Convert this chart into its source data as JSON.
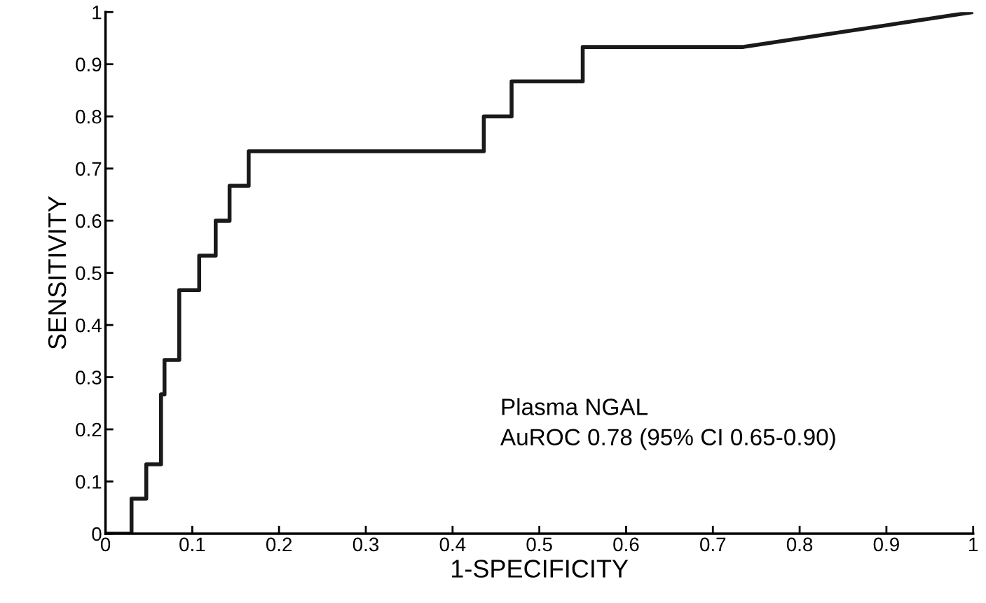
{
  "chart_data": {
    "type": "line",
    "xlabel": "1-SPECIFICITY",
    "ylabel": "SENSITIVITY",
    "series": [
      {
        "color": "#1a1a1a",
        "x": [
          0,
          0.03,
          0.03,
          0.047,
          0.047,
          0.064,
          0.064,
          0.068,
          0.068,
          0.085,
          0.085,
          0.108,
          0.108,
          0.127,
          0.127,
          0.143,
          0.143,
          0.165,
          0.165,
          0.436,
          0.436,
          0.468,
          0.468,
          0.55,
          0.55,
          0.735,
          1
        ],
        "values": [
          0,
          0,
          0.067,
          0.067,
          0.133,
          0.133,
          0.267,
          0.267,
          0.333,
          0.333,
          0.467,
          0.467,
          0.533,
          0.533,
          0.6,
          0.6,
          0.667,
          0.667,
          0.733,
          0.733,
          0.8,
          0.8,
          0.867,
          0.867,
          0.933,
          0.933,
          1
        ]
      }
    ],
    "xlim": [
      0,
      1
    ],
    "ylim": [
      0,
      1
    ],
    "xticks": [
      0,
      0.1,
      0.2,
      0.3,
      0.4,
      0.5,
      0.6,
      0.7,
      0.8,
      0.9,
      1
    ],
    "yticks": [
      0,
      0.1,
      0.2,
      0.3,
      0.4,
      0.5,
      0.6,
      0.7,
      0.8,
      0.9,
      1
    ],
    "annotations": [
      "Plasma NGAL\nAuROC 0.78 (95% CI 0.65-0.90)"
    ],
    "grid": false,
    "legend": false,
    "marker": "none",
    "line_style": "solid"
  }
}
